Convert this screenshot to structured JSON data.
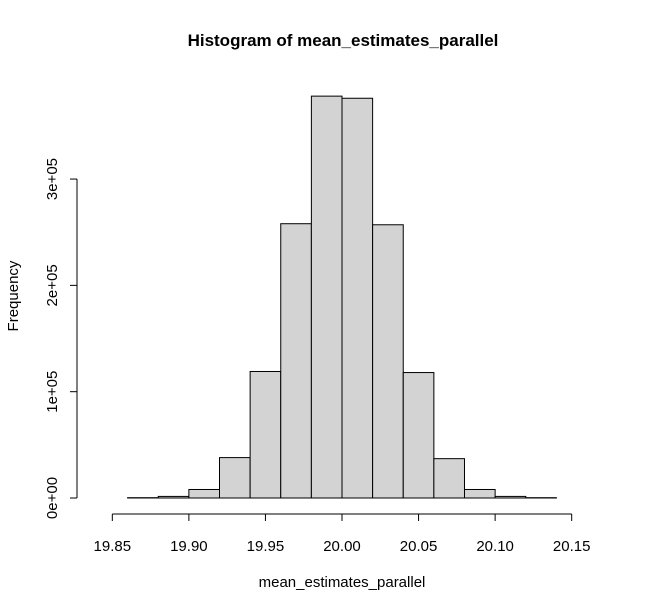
{
  "chart_data": {
    "type": "bar",
    "title": "Histogram of mean_estimates_parallel",
    "xlabel": "mean_estimates_parallel",
    "ylabel": "Frequency",
    "bin_edges": [
      19.86,
      19.88,
      19.9,
      19.92,
      19.94,
      19.96,
      19.98,
      20.0,
      20.02,
      20.04,
      20.06,
      20.08,
      20.1,
      20.12,
      20.14
    ],
    "values": [
      300,
      1500,
      8000,
      38000,
      119000,
      258000,
      378000,
      376000,
      257000,
      118000,
      37000,
      8000,
      1500,
      300
    ],
    "xlim": [
      19.84,
      20.16
    ],
    "ylim": [
      0,
      380000
    ],
    "x_ticks": [
      19.85,
      19.9,
      19.95,
      20.0,
      20.05,
      20.1,
      20.15
    ],
    "x_tick_labels": [
      "19.85",
      "19.90",
      "19.95",
      "20.00",
      "20.05",
      "20.10",
      "20.15"
    ],
    "y_ticks": [
      0,
      100000,
      200000,
      300000
    ],
    "y_tick_labels": [
      "0e+00",
      "1e+05",
      "2e+05",
      "3e+05"
    ],
    "bar_fill": "#d3d3d3",
    "bar_stroke": "#000000",
    "grid": false,
    "legend": "none"
  }
}
